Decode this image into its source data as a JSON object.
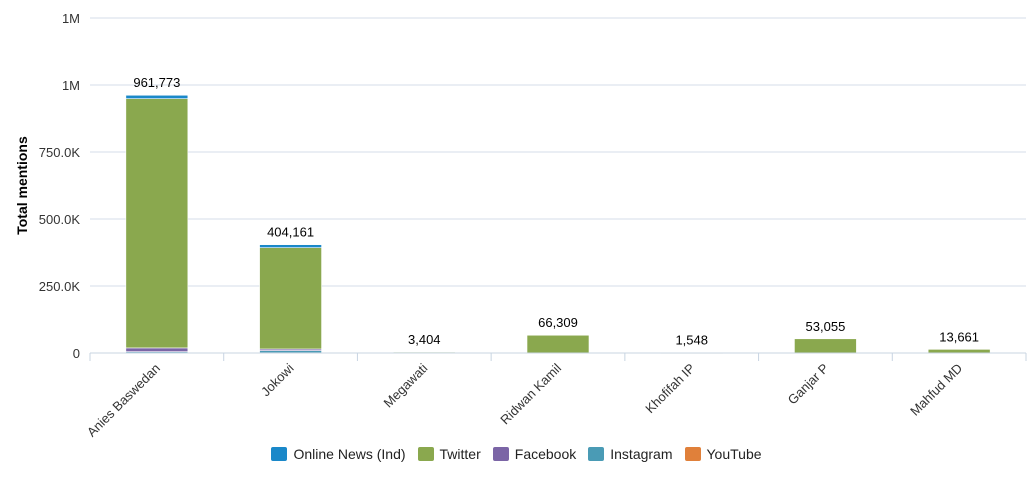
{
  "chart_data": {
    "type": "bar",
    "stacked": true,
    "ylabel": "Total mentions",
    "ylim": [
      0,
      1250000
    ],
    "yticks": [
      {
        "value": 0,
        "label": "0"
      },
      {
        "value": 250000,
        "label": "250.0K"
      },
      {
        "value": 500000,
        "label": "500.0K"
      },
      {
        "value": 750000,
        "label": "750.0K"
      },
      {
        "value": 1000000,
        "label": "1M"
      },
      {
        "value": 1250000,
        "label": "1M"
      }
    ],
    "categories": [
      "Anies Baswedan",
      "Jokowi",
      "Megawati",
      "Ridwan Kamil",
      "Khofifah IP",
      "Ganjar P",
      "Mahfud MD"
    ],
    "totals": [
      961773,
      404161,
      3404,
      66309,
      1548,
      53055,
      13661
    ],
    "total_labels": [
      "961,773",
      "404,161",
      "3,404",
      "66,309",
      "1,548",
      "53,055",
      "13,661"
    ],
    "series": [
      {
        "name": "YouTube",
        "color": "#e0803a",
        "values": [
          2000,
          1000,
          0,
          0,
          0,
          0,
          0
        ]
      },
      {
        "name": "Instagram",
        "color": "#4a9bb5",
        "values": [
          3000,
          8000,
          0,
          0,
          0,
          0,
          0
        ]
      },
      {
        "name": "Facebook",
        "color": "#7b65a6",
        "values": [
          14000,
          6000,
          0,
          0,
          0,
          0,
          0
        ]
      },
      {
        "name": "Twitter",
        "color": "#8aa84e",
        "values": [
          930000,
          378000,
          3404,
          66309,
          1548,
          53055,
          13661
        ]
      },
      {
        "name": "Online News (Ind)",
        "color": "#1a88c9",
        "values": [
          12773,
          11161,
          0,
          0,
          0,
          0,
          0
        ]
      }
    ],
    "legend": [
      "Online News (Ind)",
      "Twitter",
      "Facebook",
      "Instagram",
      "YouTube"
    ],
    "legend_position": "bottom"
  }
}
